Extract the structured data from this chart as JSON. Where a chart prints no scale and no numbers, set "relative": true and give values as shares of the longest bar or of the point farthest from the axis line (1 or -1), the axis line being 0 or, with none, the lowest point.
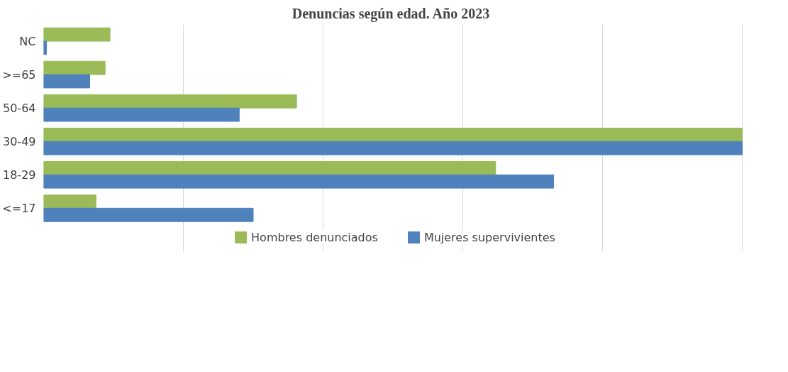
{
  "chart_data": {
    "type": "bar",
    "orientation": "horizontal",
    "relative": true,
    "title": "Denuncias  según edad.  Año 2023",
    "categories": [
      "NC",
      ">=65",
      "50-64",
      "30-49",
      "18-29",
      "<=17"
    ],
    "series": [
      {
        "name": "Hombres denunciados",
        "color": "#9bbb59",
        "values": [
          0.095,
          0.088,
          0.362,
          1.0,
          0.647,
          0.075
        ]
      },
      {
        "name": "Mujeres supervivientes",
        "color": "#4f81bd",
        "values": [
          0.004,
          0.066,
          0.28,
          1.0,
          0.73,
          0.3
        ]
      }
    ],
    "grid": "x",
    "legend": "bottom",
    "tick_labels": "y"
  }
}
